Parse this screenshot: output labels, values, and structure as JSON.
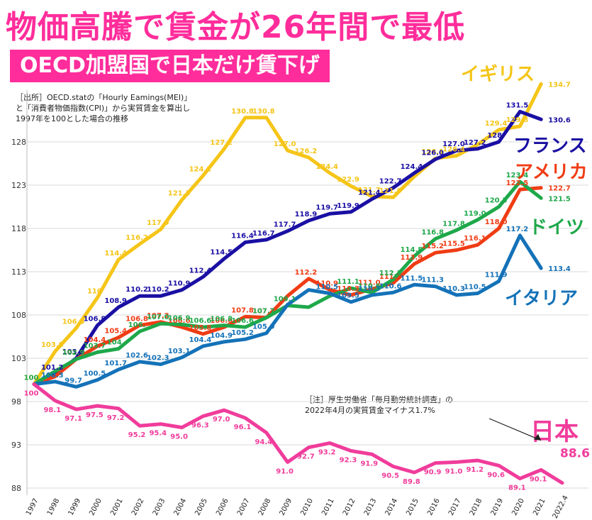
{
  "title": "物価高騰で賃金が26年間で最低",
  "subtitle": "OECD加盟国で日本だけ賃下げ",
  "source_lines": [
    "［出所］OECD.statの「Hourly Eamings(MEI)」",
    "と「消費者物価指数(CPI)」から実質賃金を算出し",
    "1997年を100とした場合の推移"
  ],
  "note_lines": [
    "［注］厚生労働省「毎月勤労統計調査」の",
    "2022年4月の実質賃金マイナス1.7%"
  ],
  "chart_data": {
    "type": "line",
    "x": [
      "1997",
      "1998",
      "1999",
      "2000",
      "2001",
      "2002",
      "2003",
      "2004",
      "2005",
      "2006",
      "2007",
      "2008",
      "2009",
      "2010",
      "2011",
      "2012",
      "2013",
      "2014",
      "2015",
      "2016",
      "2017",
      "2018",
      "2019",
      "2020",
      "2021",
      "2022.4"
    ],
    "y_ticks": [
      88,
      93,
      98,
      103,
      108,
      113,
      118,
      123,
      128
    ],
    "ylim": [
      87,
      134
    ],
    "grid": true,
    "series": [
      {
        "name": "イギリス",
        "color": "#f5c518",
        "values": [
          100,
          103.8,
          106.5,
          110,
          114.4,
          116.2,
          117.9,
          121.3,
          124.1,
          127.2,
          130.8,
          130.8,
          127.0,
          126.2,
          124.4,
          122.9,
          121.7,
          121.6,
          124.0,
          126.1,
          126.4,
          127.7,
          129.4,
          129.8,
          134.7,
          null
        ],
        "labels": [
          "100",
          "103.8",
          "106.5",
          "110",
          "114.4",
          "116.2",
          "117.9",
          "121.3",
          "124.1",
          "127.2",
          "130.8",
          "130.8",
          "127.0",
          "126.2",
          "124.4",
          "122.9",
          "121.7",
          "121.6",
          "",
          "126.1",
          "126.4",
          "",
          "129.4",
          "129.8",
          "134.7",
          ""
        ]
      },
      {
        "name": "フランス",
        "color": "#1a0fa3",
        "values": [
          100,
          101.2,
          103.0,
          106.8,
          108.9,
          110.2,
          110.2,
          110.9,
          112.4,
          114.5,
          116.4,
          116.7,
          117.7,
          118.9,
          119.7,
          119.9,
          121.4,
          122.7,
          124.4,
          126.0,
          127.0,
          127.2,
          128.0,
          131.5,
          130.6,
          null
        ],
        "labels": [
          "",
          "101.2",
          "103.0",
          "106.8",
          "108.9",
          "110.2",
          "110.2",
          "110.9",
          "112.4",
          "114.5",
          "116.4",
          "116.7",
          "117.7",
          "118.9",
          "119.7",
          "119.9",
          "121.4",
          "122.7",
          "124.4",
          "126.0",
          "127.0",
          "127.2",
          "128.",
          "131.5",
          "130.6",
          ""
        ]
      },
      {
        "name": "アメリカ",
        "color": "#f03c14",
        "values": [
          100,
          100.9,
          102.9,
          104.4,
          105.4,
          106.8,
          107.2,
          106.6,
          105.8,
          106.6,
          107.8,
          107.7,
          110.2,
          112.2,
          110.9,
          110.3,
          111.0,
          111.7,
          113.9,
          115.2,
          115.5,
          116.1,
          118.0,
          122.5,
          122.7,
          null
        ],
        "labels": [
          "",
          "",
          "102.9",
          "104.4",
          "105.4",
          "106.8",
          "107.2",
          "106.6",
          "105.8",
          "106.6",
          "107.8",
          "107.7",
          "",
          "112.2",
          "110.9",
          "110.3",
          "111.0",
          "111.7",
          "113.9",
          "115.2",
          "115.5",
          "116.1",
          "118.0",
          "122.5",
          "122.7",
          ""
        ]
      },
      {
        "name": "ドイツ",
        "color": "#1ea84a",
        "values": [
          100,
          101.5,
          102.9,
          103.7,
          104.1,
          106.1,
          107.0,
          106.9,
          106.6,
          106.8,
          106.6,
          107.7,
          109.1,
          108.9,
          110.2,
          111.1,
          110.6,
          112.1,
          114.8,
          116.8,
          117.8,
          119.0,
          120.5,
          123.4,
          121.5,
          null
        ],
        "labels": [
          "100",
          "",
          "102.9",
          "103.7",
          "104.",
          "106.",
          "107.0",
          "106.9",
          "106.6",
          "106.8",
          "106.6",
          "107.7",
          "109.1",
          "",
          "",
          "111.1",
          "110.6",
          "112.1",
          "114.8",
          "116.8",
          "117.8",
          "119.0",
          "120.5",
          "123.4",
          "121.5",
          ""
        ]
      },
      {
        "name": "イタリア",
        "color": "#1472b8",
        "values": [
          100,
          100.3,
          99.7,
          100.5,
          101.7,
          102.6,
          102.3,
          103.1,
          104.4,
          104.9,
          105.2,
          105.9,
          109.2,
          110.9,
          110.5,
          109.5,
          110.3,
          110.6,
          111.5,
          111.3,
          110.3,
          110.5,
          111.9,
          117.2,
          113.4,
          null
        ],
        "labels": [
          "",
          "100.3",
          "99.7",
          "100.5",
          "101.7",
          "102.6",
          "102.3",
          "103.1",
          "104.4",
          "104.9",
          "105.2",
          "105.9",
          "",
          "",
          "110.5",
          "109.5",
          "110.3",
          "110.6",
          "111.5",
          "111.3",
          "110.3",
          "110.5",
          "111.9",
          "117.2",
          "113.4",
          ""
        ]
      },
      {
        "name": "日本",
        "color": "#f03c9b",
        "values": [
          100,
          98.1,
          97.1,
          97.5,
          97.2,
          95.2,
          95.4,
          95.0,
          96.3,
          97.0,
          96.1,
          94.4,
          91.0,
          92.7,
          93.2,
          92.3,
          91.9,
          90.5,
          89.8,
          90.9,
          91.0,
          91.2,
          90.6,
          89.1,
          90.1,
          88.6
        ],
        "labels": [
          "100",
          "98.1",
          "97.1",
          "97.5",
          "97.2",
          "95.2",
          "95.4",
          "95.0",
          "96.3",
          "97.0",
          "96.1",
          "94.4",
          "91.0",
          "92.7",
          "93.2",
          "92.3",
          "91.9",
          "90.5",
          "89.8",
          "90.9",
          "91.0",
          "91.2",
          "90.6",
          "89.1",
          "90.1",
          "88.6"
        ]
      }
    ]
  }
}
